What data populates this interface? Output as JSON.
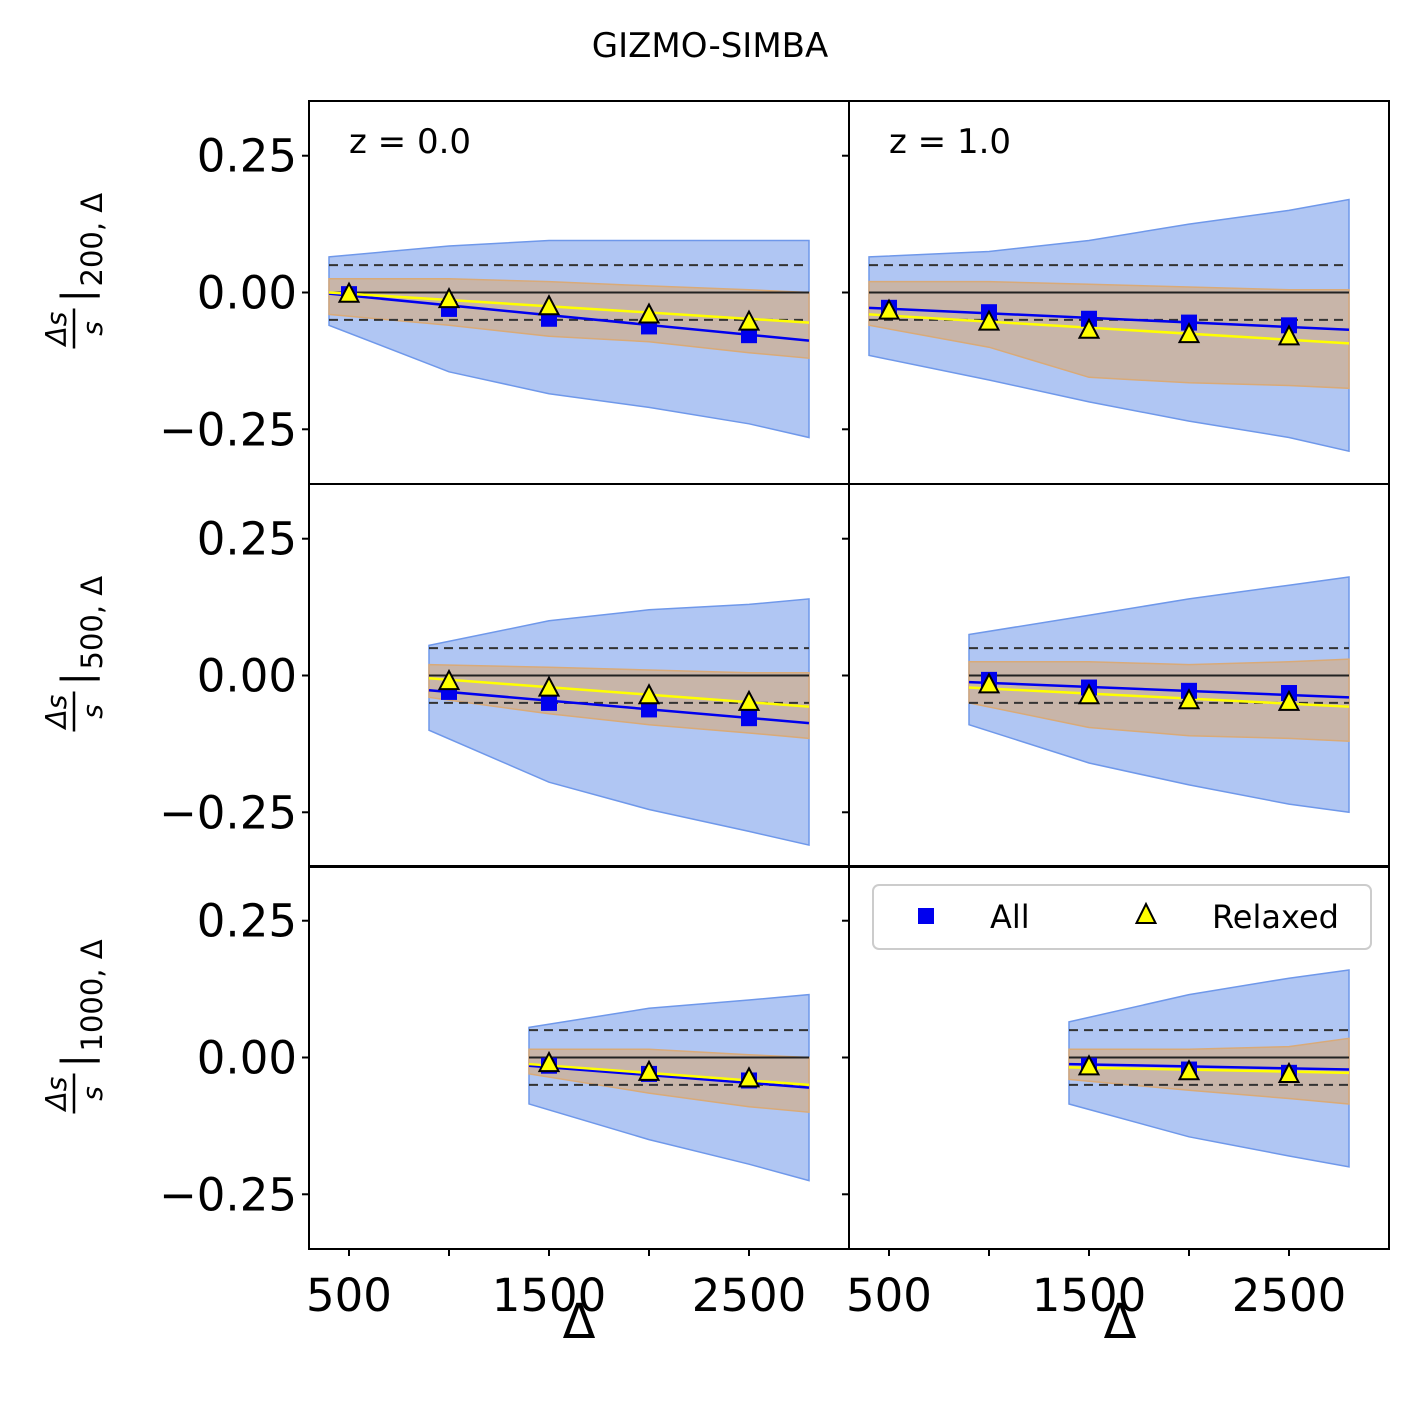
{
  "chart_data": {
    "type": "scatter",
    "title": "GIZMO-SIMBA",
    "xlabel": "Δ",
    "xlim": [
      300,
      3000
    ],
    "ylim": [
      -0.35,
      0.35
    ],
    "xticks": [
      500,
      1000,
      1500,
      2000,
      2500
    ],
    "xtick_labels": [
      "500",
      "1500",
      "2500"
    ],
    "yticks": [
      0.25,
      0.0,
      -0.25
    ],
    "ytick_labels": [
      "0.25",
      "0.00",
      "−0.25"
    ],
    "reference_lines": {
      "solid": 0.0,
      "dashed": [
        0.05,
        -0.05
      ]
    },
    "legend": {
      "position": "top",
      "entries": [
        {
          "label": "All",
          "marker": "square",
          "color": "#0000ee"
        },
        {
          "label": "Relaxed",
          "marker": "triangle",
          "color": "#ffff00"
        }
      ]
    },
    "colors": {
      "all": "#0000ee",
      "relaxed": "#ffff00",
      "band_all": "#6f98ea",
      "band_relaxed": "#d9aa78"
    },
    "rows": [
      {
        "ylabel_frac": "Δs/s",
        "ylabel_sub": "200, Δ"
      },
      {
        "ylabel_frac": "Δs/s",
        "ylabel_sub": "500, Δ"
      },
      {
        "ylabel_frac": "Δs/s",
        "ylabel_sub": "1000, Δ"
      }
    ],
    "columns": [
      {
        "z_label": "z = 0.0"
      },
      {
        "z_label": "z = 1.0"
      }
    ],
    "panels": [
      {
        "row": 0,
        "col": 0,
        "all_x": [
          500,
          1000,
          1500,
          2000,
          2500
        ],
        "all_y": [
          -0.003,
          -0.03,
          -0.048,
          -0.062,
          -0.078
        ],
        "relaxed_x": [
          500,
          1000,
          1500,
          2000,
          2500
        ],
        "relaxed_y": [
          -0.004,
          -0.014,
          -0.027,
          -0.042,
          -0.055
        ],
        "fit_x": [
          400,
          2800
        ],
        "fit_all": [
          -0.002,
          -0.088
        ],
        "fit_relaxed": [
          0.0,
          -0.055
        ],
        "band_x": [
          400,
          1000,
          1500,
          2000,
          2500,
          2800
        ],
        "band_all_upper": [
          0.065,
          0.085,
          0.095,
          0.095,
          0.095,
          0.095
        ],
        "band_all_lower": [
          -0.06,
          -0.145,
          -0.185,
          -0.21,
          -0.24,
          -0.265
        ],
        "band_rel_upper": [
          0.025,
          0.025,
          0.02,
          0.012,
          0.005,
          0.0
        ],
        "band_rel_lower": [
          -0.04,
          -0.06,
          -0.08,
          -0.09,
          -0.11,
          -0.12
        ]
      },
      {
        "row": 0,
        "col": 1,
        "all_x": [
          500,
          1000,
          1500,
          2000,
          2500
        ],
        "all_y": [
          -0.028,
          -0.036,
          -0.048,
          -0.055,
          -0.06
        ],
        "relaxed_x": [
          500,
          1000,
          1500,
          2000,
          2500
        ],
        "relaxed_y": [
          -0.035,
          -0.055,
          -0.07,
          -0.078,
          -0.082
        ],
        "fit_x": [
          400,
          2800
        ],
        "fit_all": [
          -0.028,
          -0.068
        ],
        "fit_relaxed": [
          -0.04,
          -0.093
        ],
        "band_x": [
          400,
          1000,
          1500,
          2000,
          2500,
          2800
        ],
        "band_all_upper": [
          0.065,
          0.075,
          0.095,
          0.125,
          0.15,
          0.17
        ],
        "band_all_lower": [
          -0.115,
          -0.16,
          -0.2,
          -0.235,
          -0.265,
          -0.29
        ],
        "band_rel_upper": [
          0.02,
          0.02,
          0.015,
          0.01,
          0.005,
          0.005
        ],
        "band_rel_lower": [
          -0.06,
          -0.1,
          -0.155,
          -0.165,
          -0.17,
          -0.175
        ]
      },
      {
        "row": 1,
        "col": 0,
        "all_x": [
          1000,
          1500,
          2000,
          2500
        ],
        "all_y": [
          -0.03,
          -0.05,
          -0.062,
          -0.078
        ],
        "relaxed_x": [
          1000,
          1500,
          2000,
          2500
        ],
        "relaxed_y": [
          -0.012,
          -0.024,
          -0.038,
          -0.05
        ],
        "fit_x": [
          900,
          2800
        ],
        "fit_all": [
          -0.027,
          -0.087
        ],
        "fit_relaxed": [
          -0.005,
          -0.057
        ],
        "band_x": [
          900,
          1500,
          2000,
          2500,
          2800
        ],
        "band_all_upper": [
          0.055,
          0.1,
          0.12,
          0.13,
          0.14
        ],
        "band_all_lower": [
          -0.1,
          -0.195,
          -0.245,
          -0.285,
          -0.31
        ],
        "band_rel_upper": [
          0.02,
          0.015,
          0.01,
          0.005,
          0.005
        ],
        "band_rel_lower": [
          -0.04,
          -0.07,
          -0.09,
          -0.105,
          -0.115
        ]
      },
      {
        "row": 1,
        "col": 1,
        "all_x": [
          1000,
          1500,
          2000,
          2500
        ],
        "all_y": [
          -0.008,
          -0.022,
          -0.028,
          -0.032
        ],
        "relaxed_x": [
          1000,
          1500,
          2000,
          2500
        ],
        "relaxed_y": [
          -0.018,
          -0.038,
          -0.047,
          -0.05
        ],
        "fit_x": [
          900,
          2800
        ],
        "fit_all": [
          -0.012,
          -0.04
        ],
        "fit_relaxed": [
          -0.022,
          -0.057
        ],
        "band_x": [
          900,
          1500,
          2000,
          2500,
          2800
        ],
        "band_all_upper": [
          0.075,
          0.11,
          0.14,
          0.165,
          0.18
        ],
        "band_all_lower": [
          -0.09,
          -0.16,
          -0.2,
          -0.235,
          -0.25
        ],
        "band_rel_upper": [
          0.025,
          0.025,
          0.02,
          0.025,
          0.03
        ],
        "band_rel_lower": [
          -0.05,
          -0.095,
          -0.11,
          -0.115,
          -0.12
        ]
      },
      {
        "row": 2,
        "col": 0,
        "all_x": [
          1500,
          2000,
          2500
        ],
        "all_y": [
          -0.015,
          -0.03,
          -0.042
        ],
        "relaxed_x": [
          1500,
          2000,
          2500
        ],
        "relaxed_y": [
          -0.012,
          -0.028,
          -0.04
        ],
        "fit_x": [
          1400,
          2800
        ],
        "fit_all": [
          -0.015,
          -0.055
        ],
        "fit_relaxed": [
          -0.012,
          -0.05
        ],
        "band_x": [
          1400,
          2000,
          2500,
          2800
        ],
        "band_all_upper": [
          0.055,
          0.09,
          0.105,
          0.115
        ],
        "band_all_lower": [
          -0.085,
          -0.15,
          -0.195,
          -0.225
        ],
        "band_rel_upper": [
          0.015,
          0.015,
          0.005,
          0.0
        ],
        "band_rel_lower": [
          -0.03,
          -0.065,
          -0.09,
          -0.1
        ]
      },
      {
        "row": 2,
        "col": 1,
        "all_x": [
          1500,
          2000,
          2500
        ],
        "all_y": [
          -0.015,
          -0.022,
          -0.028
        ],
        "relaxed_x": [
          1500,
          2000,
          2500
        ],
        "relaxed_y": [
          -0.018,
          -0.027,
          -0.032
        ],
        "fit_x": [
          1400,
          2800
        ],
        "fit_all": [
          -0.012,
          -0.022
        ],
        "fit_relaxed": [
          -0.018,
          -0.028
        ],
        "band_x": [
          1400,
          2000,
          2500,
          2800
        ],
        "band_all_upper": [
          0.065,
          0.115,
          0.145,
          0.16
        ],
        "band_all_lower": [
          -0.085,
          -0.145,
          -0.18,
          -0.2
        ],
        "band_rel_upper": [
          0.015,
          0.015,
          0.02,
          0.035
        ],
        "band_rel_lower": [
          -0.04,
          -0.06,
          -0.075,
          -0.085
        ]
      }
    ]
  }
}
